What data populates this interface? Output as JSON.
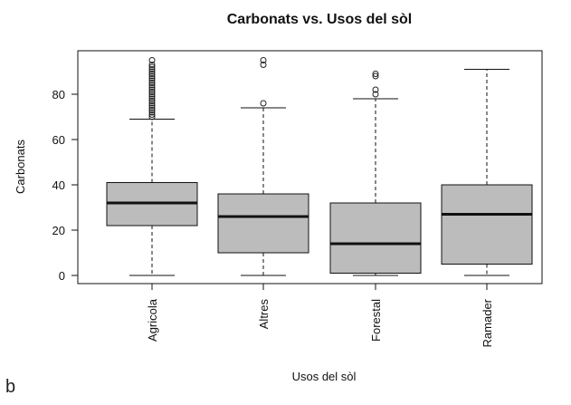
{
  "panel_label": "b",
  "colors": {
    "box_fill": "#bcbcbc",
    "stroke": "#111111",
    "outlier": "#222222"
  },
  "chart_data": {
    "type": "boxplot",
    "title": "Carbonats vs. Usos del sòl",
    "xlabel": "Usos del sòl",
    "ylabel": "Carbonats",
    "ylim": [
      -3,
      98
    ],
    "yticks": [
      0,
      20,
      40,
      60,
      80
    ],
    "grid": false,
    "categories": [
      "Agricola",
      "Altres",
      "Forestal",
      "Ramader"
    ],
    "boxes": [
      {
        "category": "Agricola",
        "whisker_low": 0,
        "q1": 22,
        "median": 32,
        "q3": 41,
        "whisker_high": 69,
        "outliers": [
          70,
          71,
          72,
          73,
          74,
          75,
          76,
          77,
          78,
          79,
          80,
          81,
          82,
          83,
          84,
          85,
          86,
          87,
          88,
          89,
          90,
          91,
          92,
          93,
          95
        ]
      },
      {
        "category": "Altres",
        "whisker_low": 0,
        "q1": 10,
        "median": 26,
        "q3": 36,
        "whisker_high": 74,
        "outliers": [
          76,
          93,
          95
        ]
      },
      {
        "category": "Forestal",
        "whisker_low": 0,
        "q1": 1,
        "median": 14,
        "q3": 32,
        "whisker_high": 78,
        "outliers": [
          80,
          82,
          88,
          89
        ]
      },
      {
        "category": "Ramader",
        "whisker_low": 0,
        "q1": 5,
        "median": 27,
        "q3": 40,
        "whisker_high": 91,
        "outliers": []
      }
    ]
  }
}
